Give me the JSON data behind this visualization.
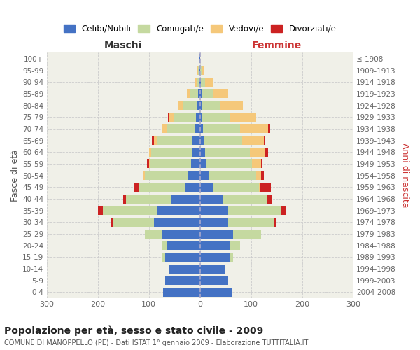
{
  "age_groups": [
    "0-4",
    "5-9",
    "10-14",
    "15-19",
    "20-24",
    "25-29",
    "30-34",
    "35-39",
    "40-44",
    "45-49",
    "50-54",
    "55-59",
    "60-64",
    "65-69",
    "70-74",
    "75-79",
    "80-84",
    "85-89",
    "90-94",
    "95-99",
    "100+"
  ],
  "birth_years": [
    "2004-2008",
    "1999-2003",
    "1994-1998",
    "1989-1993",
    "1984-1988",
    "1979-1983",
    "1974-1978",
    "1969-1973",
    "1964-1968",
    "1959-1963",
    "1954-1958",
    "1949-1953",
    "1944-1948",
    "1939-1943",
    "1934-1938",
    "1929-1933",
    "1924-1928",
    "1919-1923",
    "1914-1918",
    "1909-1913",
    "≤ 1908"
  ],
  "colors": {
    "celibi": "#4472c4",
    "coniugati": "#c5d9a0",
    "vedovi": "#f5c87a",
    "divorziati": "#cc2222"
  },
  "maschi_celibi": [
    72,
    68,
    60,
    68,
    65,
    75,
    90,
    85,
    55,
    30,
    23,
    17,
    15,
    14,
    10,
    8,
    5,
    3,
    2,
    1,
    1
  ],
  "maschi_coniugati": [
    0,
    0,
    0,
    5,
    10,
    32,
    80,
    105,
    90,
    90,
    85,
    80,
    80,
    70,
    55,
    42,
    28,
    15,
    5,
    2,
    0
  ],
  "maschi_vedovi": [
    0,
    0,
    0,
    0,
    0,
    0,
    0,
    0,
    0,
    0,
    2,
    2,
    4,
    6,
    8,
    10,
    9,
    8,
    4,
    2,
    0
  ],
  "maschi_divorziati": [
    0,
    0,
    0,
    0,
    0,
    0,
    3,
    10,
    5,
    8,
    2,
    5,
    0,
    4,
    0,
    2,
    0,
    0,
    0,
    0,
    0
  ],
  "femmine_celibi": [
    62,
    55,
    50,
    60,
    60,
    65,
    55,
    55,
    45,
    25,
    18,
    12,
    10,
    8,
    6,
    5,
    4,
    3,
    2,
    1,
    0
  ],
  "femmine_coniugati": [
    0,
    0,
    0,
    5,
    18,
    55,
    90,
    105,
    85,
    90,
    92,
    90,
    88,
    75,
    72,
    55,
    35,
    22,
    8,
    2,
    0
  ],
  "femmine_vedovi": [
    0,
    0,
    0,
    0,
    0,
    0,
    0,
    0,
    2,
    4,
    10,
    18,
    30,
    42,
    55,
    50,
    45,
    30,
    15,
    5,
    1
  ],
  "femmine_divorziati": [
    0,
    0,
    0,
    0,
    0,
    0,
    5,
    8,
    8,
    20,
    5,
    3,
    6,
    2,
    4,
    0,
    0,
    1,
    1,
    1,
    0
  ],
  "xlim": 300,
  "xticks": [
    -300,
    -200,
    -100,
    0,
    100,
    200,
    300
  ],
  "title": "Popolazione per età, sesso e stato civile - 2009",
  "subtitle": "COMUNE DI MANOPPELLO (PE) - Dati ISTAT 1° gennaio 2009 - Elaborazione TUTTITALIA.IT",
  "ylabel": "Fasce di età",
  "ylabel_right": "Anni di nascita",
  "label_maschi": "Maschi",
  "label_femmine": "Femmine",
  "bg_color": "#f0f0e8",
  "legend_labels": [
    "Celibi/Nubili",
    "Coniugati/e",
    "Vedovi/e",
    "Divorziati/e"
  ],
  "grid_color": "#cccccc",
  "center_line_color": "#aaaacc",
  "bar_height": 0.78
}
